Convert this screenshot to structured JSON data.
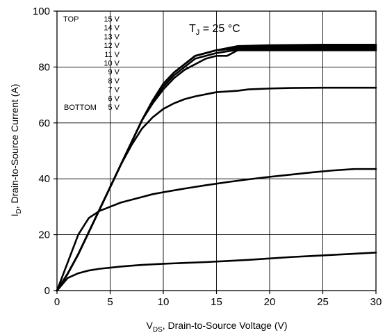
{
  "chart_data": {
    "type": "line",
    "title": "",
    "xlabel": {
      "main": "V",
      "sub": "DS",
      "rest": ", Drain-to-Source Voltage (V)"
    },
    "ylabel": {
      "main": "I",
      "sub": "D",
      "rest": ", Drain-to-Source Current (A)"
    },
    "xlim": [
      0,
      30
    ],
    "ylim": [
      0,
      100
    ],
    "xticks": [
      0,
      5,
      10,
      15,
      20,
      25,
      30
    ],
    "yticks": [
      0,
      20,
      40,
      60,
      80,
      100
    ],
    "grid": true,
    "annotation": {
      "main": "T",
      "sub": "J",
      "rest": " = 25 °C"
    },
    "legend": {
      "placement": "top-left",
      "entries": [
        {
          "prefix": "TOP",
          "text": "15 V"
        },
        {
          "prefix": "",
          "text": "14 V"
        },
        {
          "prefix": "",
          "text": "13 V"
        },
        {
          "prefix": "",
          "text": "12 V"
        },
        {
          "prefix": "",
          "text": "11 V"
        },
        {
          "prefix": "",
          "text": "10 V"
        },
        {
          "prefix": "",
          "text": "9 V"
        },
        {
          "prefix": "",
          "text": "8 V"
        },
        {
          "prefix": "",
          "text": "7 V"
        },
        {
          "prefix": "",
          "text": "6 V"
        },
        {
          "prefix": "BOTTOM",
          "text": "5 V"
        }
      ]
    },
    "series": [
      {
        "points": [
          [
            0,
            0
          ],
          [
            1,
            6
          ],
          [
            2,
            13
          ],
          [
            3,
            21
          ],
          [
            4,
            29
          ],
          [
            5,
            37
          ],
          [
            6,
            45
          ],
          [
            7,
            53
          ],
          [
            8,
            61
          ],
          [
            9,
            68
          ],
          [
            10,
            74
          ],
          [
            11,
            78
          ],
          [
            12,
            81
          ],
          [
            13,
            84
          ],
          [
            15,
            86
          ],
          [
            17,
            87.5
          ],
          [
            20,
            87.8
          ],
          [
            25,
            88
          ],
          [
            30,
            88
          ]
        ]
      },
      {
        "points": [
          [
            0,
            0
          ],
          [
            1,
            6
          ],
          [
            2,
            13
          ],
          [
            3,
            21
          ],
          [
            4,
            29
          ],
          [
            5,
            37
          ],
          [
            6,
            45
          ],
          [
            7,
            53
          ],
          [
            8,
            61
          ],
          [
            9,
            68
          ],
          [
            10,
            74
          ],
          [
            11,
            78
          ],
          [
            12,
            81
          ],
          [
            13,
            84
          ],
          [
            15,
            86
          ],
          [
            17,
            87.2
          ],
          [
            20,
            87.4
          ],
          [
            25,
            87.6
          ],
          [
            30,
            87.6
          ]
        ]
      },
      {
        "points": [
          [
            0,
            0
          ],
          [
            1,
            6
          ],
          [
            2,
            13
          ],
          [
            3,
            21
          ],
          [
            4,
            29
          ],
          [
            5,
            37
          ],
          [
            6,
            45
          ],
          [
            7,
            53
          ],
          [
            8,
            61
          ],
          [
            9,
            68
          ],
          [
            10,
            74
          ],
          [
            11,
            78
          ],
          [
            12,
            81
          ],
          [
            13,
            84
          ],
          [
            15,
            86
          ],
          [
            17,
            86.9
          ],
          [
            20,
            87
          ],
          [
            25,
            87.2
          ],
          [
            30,
            87.2
          ]
        ]
      },
      {
        "points": [
          [
            0,
            0
          ],
          [
            1,
            6
          ],
          [
            2,
            13
          ],
          [
            3,
            21
          ],
          [
            4,
            29
          ],
          [
            5,
            37
          ],
          [
            6,
            45
          ],
          [
            7,
            53
          ],
          [
            8,
            61
          ],
          [
            9,
            68
          ],
          [
            10,
            74
          ],
          [
            11,
            78
          ],
          [
            12,
            81
          ],
          [
            13,
            84
          ],
          [
            15,
            86
          ],
          [
            17,
            86.6
          ],
          [
            20,
            86.7
          ],
          [
            25,
            86.8
          ],
          [
            30,
            86.8
          ]
        ]
      },
      {
        "points": [
          [
            0,
            0
          ],
          [
            1,
            6
          ],
          [
            2,
            13
          ],
          [
            3,
            21
          ],
          [
            4,
            29
          ],
          [
            5,
            37
          ],
          [
            6,
            45
          ],
          [
            7,
            53
          ],
          [
            8,
            61
          ],
          [
            9,
            67.5
          ],
          [
            10,
            73
          ],
          [
            11,
            77
          ],
          [
            12,
            80
          ],
          [
            13,
            83
          ],
          [
            15,
            85
          ],
          [
            17,
            86.2
          ],
          [
            20,
            86.3
          ],
          [
            25,
            86.4
          ],
          [
            30,
            86.4
          ]
        ]
      },
      {
        "points": [
          [
            0,
            0
          ],
          [
            1,
            6
          ],
          [
            2,
            13
          ],
          [
            3,
            21
          ],
          [
            4,
            29
          ],
          [
            5,
            37
          ],
          [
            6,
            45
          ],
          [
            7,
            53
          ],
          [
            8,
            61
          ],
          [
            9,
            67
          ],
          [
            10,
            72
          ],
          [
            11,
            76
          ],
          [
            12,
            79
          ],
          [
            13,
            81
          ],
          [
            14,
            83
          ],
          [
            15,
            84
          ],
          [
            16,
            84
          ],
          [
            17,
            86
          ],
          [
            20,
            86
          ],
          [
            25,
            86
          ],
          [
            30,
            86
          ]
        ]
      },
      {
        "points": [
          [
            0,
            0
          ],
          [
            1,
            6
          ],
          [
            2,
            13
          ],
          [
            3,
            21
          ],
          [
            4,
            29
          ],
          [
            5,
            37
          ],
          [
            6,
            45
          ],
          [
            7,
            52
          ],
          [
            8,
            58
          ],
          [
            9,
            62
          ],
          [
            10,
            65
          ],
          [
            11,
            67
          ],
          [
            12,
            68.5
          ],
          [
            13,
            69.5
          ],
          [
            15,
            71
          ],
          [
            17,
            71.5
          ],
          [
            18,
            72
          ],
          [
            20,
            72.3
          ],
          [
            22,
            72.5
          ],
          [
            25,
            72.6
          ],
          [
            30,
            72.6
          ]
        ]
      },
      {
        "points": [
          [
            0,
            0
          ],
          [
            1,
            10
          ],
          [
            2,
            20
          ],
          [
            3,
            26
          ],
          [
            4,
            28.5
          ],
          [
            5,
            30
          ],
          [
            6,
            31.5
          ],
          [
            7,
            32.5
          ],
          [
            8,
            33.5
          ],
          [
            9,
            34.5
          ],
          [
            10,
            35.2
          ],
          [
            12,
            36.5
          ],
          [
            14,
            37.7
          ],
          [
            16,
            38.8
          ],
          [
            18,
            39.8
          ],
          [
            20,
            40.7
          ],
          [
            22,
            41.5
          ],
          [
            24,
            42.3
          ],
          [
            26,
            43
          ],
          [
            28,
            43.5
          ],
          [
            30,
            43.5
          ]
        ]
      },
      {
        "points": [
          [
            0,
            0
          ],
          [
            1,
            4.5
          ],
          [
            2,
            6.2
          ],
          [
            3,
            7.2
          ],
          [
            4,
            7.8
          ],
          [
            5,
            8.2
          ],
          [
            6,
            8.6
          ],
          [
            7,
            8.9
          ],
          [
            8,
            9.2
          ],
          [
            10,
            9.6
          ],
          [
            12,
            9.9
          ],
          [
            14,
            10.2
          ],
          [
            16,
            10.6
          ],
          [
            18,
            11
          ],
          [
            20,
            11.5
          ],
          [
            22,
            12
          ],
          [
            24,
            12.4
          ],
          [
            26,
            12.8
          ],
          [
            28,
            13.2
          ],
          [
            30,
            13.6
          ]
        ]
      }
    ]
  }
}
